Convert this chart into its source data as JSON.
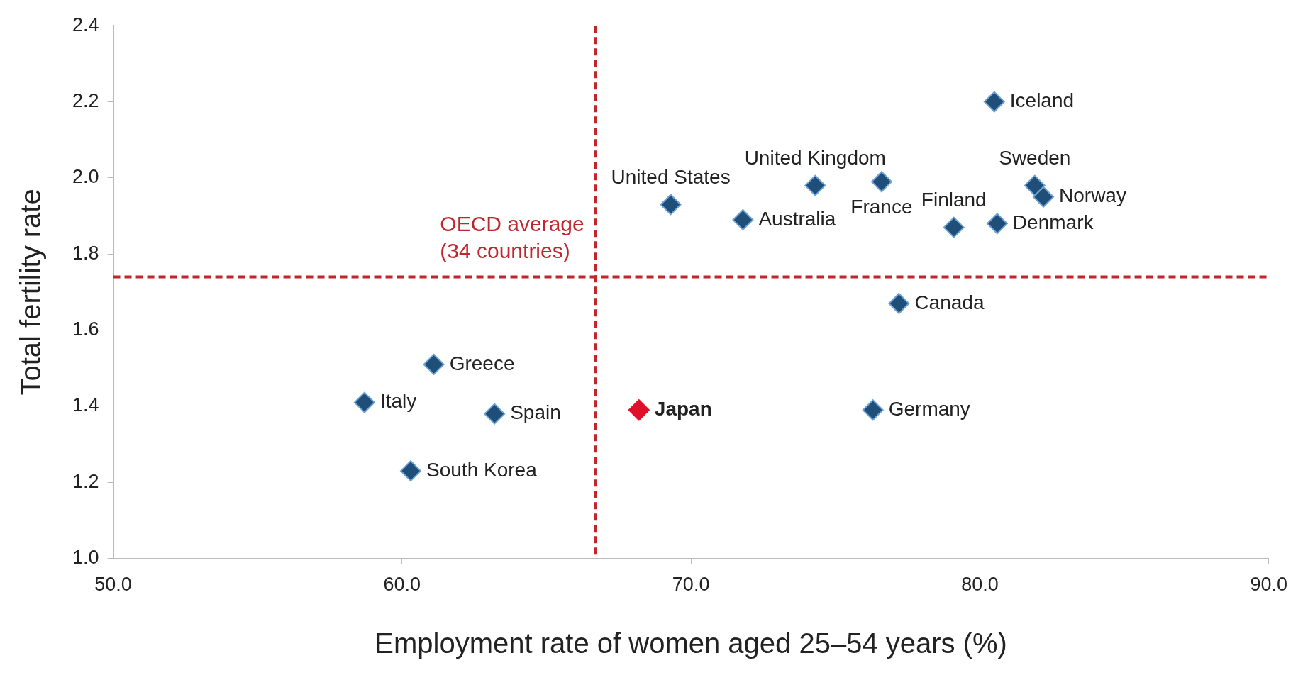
{
  "chart_data": {
    "type": "scatter",
    "xlabel": "Employment rate of women aged 25–54 years (%)",
    "ylabel": "Total fertility rate",
    "x": [
      80.5,
      81.9,
      82.2,
      80.6,
      79.1,
      74.3,
      76.6,
      69.3,
      71.8,
      77.2,
      76.3,
      68.2,
      61.1,
      58.7,
      63.2,
      60.3
    ],
    "values": [
      2.2,
      1.98,
      1.95,
      1.88,
      1.87,
      1.98,
      1.99,
      1.93,
      1.89,
      1.67,
      1.39,
      1.39,
      1.51,
      1.41,
      1.38,
      1.23
    ],
    "color": "#1f4e79",
    "colors": [
      "#1f4e79",
      "#1f4e79",
      "#1f4e79",
      "#1f4e79",
      "#1f4e79",
      "#1f4e79",
      "#1f4e79",
      "#1f4e79",
      "#1f4e79",
      "#1f4e79",
      "#1f4e79",
      "#e0102a",
      "#1f4e79",
      "#1f4e79",
      "#1f4e79",
      "#1f4e79"
    ],
    "marker": "diamond",
    "xlim": [
      50,
      90
    ],
    "xticks": [
      {
        "value": 50,
        "label": "50.0"
      },
      {
        "value": 60,
        "label": "60.0"
      },
      {
        "value": 70,
        "label": "70.0"
      },
      {
        "value": 80,
        "label": "80.0"
      },
      {
        "value": 90,
        "label": "90.0"
      }
    ],
    "ylim": [
      1.0,
      2.4
    ],
    "yticks": [
      {
        "value": 1.0,
        "label": "1.0"
      },
      {
        "value": 1.2,
        "label": "1.2"
      },
      {
        "value": 1.4,
        "label": "1.4"
      },
      {
        "value": 1.6,
        "label": "1.6"
      },
      {
        "value": 1.8,
        "label": "1.8"
      },
      {
        "value": 2.0,
        "label": "2.0"
      },
      {
        "value": 2.2,
        "label": "2.2"
      },
      {
        "value": 2.4,
        "label": "2.4"
      }
    ],
    "grid": false,
    "legend": false,
    "ref_lines": [
      {
        "axis": "x",
        "value": 66.7,
        "color": "#c0272d",
        "line_style": "dashed"
      },
      {
        "axis": "y",
        "value": 1.74,
        "label": "OECD average (34 countries)",
        "color": "#c0272d",
        "line_style": "dashed"
      }
    ],
    "annotations": [
      {
        "text": "Iceland",
        "x": 80.5,
        "y": 2.2
      },
      {
        "text": "Sweden",
        "x": 81.9,
        "y": 1.98
      },
      {
        "text": "Norway",
        "x": 82.2,
        "y": 1.95
      },
      {
        "text": "Denmark",
        "x": 80.6,
        "y": 1.88
      },
      {
        "text": "Finland",
        "x": 79.1,
        "y": 1.87
      },
      {
        "text": "United Kingdom",
        "x": 74.3,
        "y": 1.98
      },
      {
        "text": "France",
        "x": 76.6,
        "y": 1.99
      },
      {
        "text": "United States",
        "x": 69.3,
        "y": 1.93
      },
      {
        "text": "Australia",
        "x": 71.8,
        "y": 1.89
      },
      {
        "text": "Canada",
        "x": 77.2,
        "y": 1.67
      },
      {
        "text": "Germany",
        "x": 76.3,
        "y": 1.39
      },
      {
        "text": "Japan",
        "x": 68.2,
        "y": 1.39
      },
      {
        "text": "Greece",
        "x": 61.1,
        "y": 1.51
      },
      {
        "text": "Italy",
        "x": 58.7,
        "y": 1.41
      },
      {
        "text": "Spain",
        "x": 63.2,
        "y": 1.38
      },
      {
        "text": "South Korea",
        "x": 60.3,
        "y": 1.23
      }
    ]
  }
}
